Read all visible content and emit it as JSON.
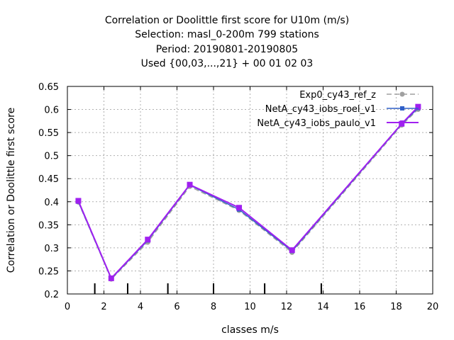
{
  "chart_data": {
    "type": "line",
    "title_lines": [
      "Correlation or Doolittle first score  for U10m (m/s)",
      "Selection: masl_0-200m    799 stations",
      "Period: 20190801-20190805",
      "Used {00,03,...,21} + 00 01 02 03"
    ],
    "xlabel": "classes m/s",
    "ylabel": "Correlation or Doolittle first score",
    "xlim": [
      0,
      20
    ],
    "ylim": [
      0.2,
      0.65
    ],
    "xticks": [
      0,
      2,
      4,
      6,
      8,
      10,
      12,
      14,
      16,
      18,
      20
    ],
    "yticks": [
      0.2,
      0.25,
      0.3,
      0.35,
      0.4,
      0.45,
      0.5,
      0.55,
      0.6,
      0.65
    ],
    "grid": true,
    "legend_position": "top-right",
    "class_boundary_marks": [
      1.5,
      3.3,
      5.5,
      8.0,
      10.8,
      13.9
    ],
    "series": [
      {
        "name": "Exp0_cy43_ref_z",
        "color": "#a0a0a0",
        "dash": true,
        "marker": "filled-circle",
        "x": [
          0.6,
          2.4,
          4.4,
          6.7,
          9.4,
          12.3,
          18.3,
          19.2
        ],
        "y": [
          0.399,
          0.232,
          0.312,
          0.433,
          0.381,
          0.29,
          0.566,
          0.6
        ]
      },
      {
        "name": "NetA_cy43_iobs_roel_v1",
        "color": "#3060c8",
        "dash": false,
        "marker": "filled-square",
        "x": [
          0.6,
          2.4,
          4.4,
          6.7,
          9.4,
          12.3,
          18.3,
          19.2
        ],
        "y": [
          0.4,
          0.233,
          0.316,
          0.436,
          0.383,
          0.293,
          0.568,
          0.603
        ]
      },
      {
        "name": "NetA_cy43_iobs_paulo_v1",
        "color": "#a020f0",
        "dash": false,
        "marker": "filled-square",
        "x": [
          0.6,
          2.4,
          4.4,
          6.7,
          9.4,
          12.3,
          18.3,
          19.2
        ],
        "y": [
          0.402,
          0.234,
          0.318,
          0.437,
          0.387,
          0.295,
          0.569,
          0.606
        ]
      }
    ]
  }
}
